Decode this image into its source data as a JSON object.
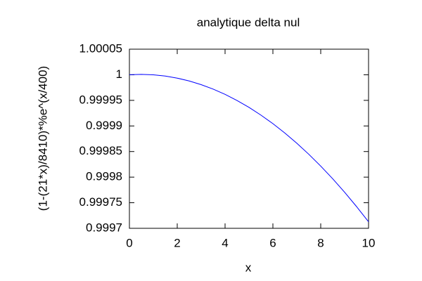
{
  "chart_data": {
    "type": "line",
    "title": "analytique delta nul",
    "xlabel": "x",
    "ylabel": "(1-(21*x)/8410)*%e^(x/400)",
    "x": [
      0,
      0.5,
      1,
      1.5,
      2,
      2.5,
      3,
      3.5,
      4,
      4.5,
      5,
      5.5,
      6,
      6.5,
      7,
      7.5,
      8,
      8.5,
      9,
      9.5,
      10
    ],
    "series": [
      {
        "color": "#0000ff",
        "values": [
          1,
          1.0000007,
          0.99999985,
          0.99999743,
          0.99999343,
          0.99998787,
          0.99998072,
          0.99997199,
          0.99996168,
          0.99994977,
          0.99993627,
          0.99992117,
          0.99990447,
          0.99988617,
          0.99986625,
          0.99984472,
          0.99982158,
          0.99979681,
          0.99977041,
          0.99974238,
          0.99971272
        ]
      }
    ],
    "xlim": [
      0,
      10
    ],
    "xticks": [
      0,
      2,
      4,
      6,
      8,
      10
    ],
    "ylim": [
      0.9997,
      1.00005
    ],
    "yticks": [
      0.9997,
      0.99975,
      0.9998,
      0.99985,
      0.9999,
      0.99995,
      1,
      1.00005
    ],
    "grid": false
  }
}
